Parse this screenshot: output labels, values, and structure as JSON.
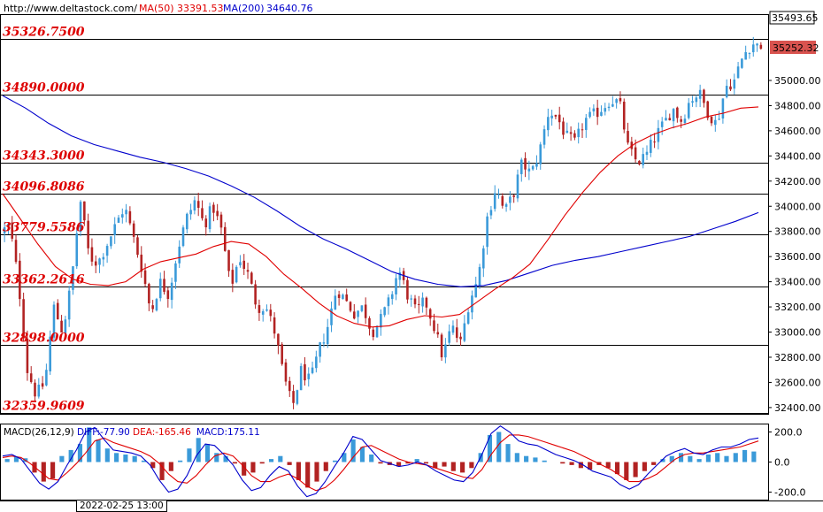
{
  "header": {
    "url": "http://www.deltastock.com/",
    "ma50_label": "MA(50)",
    "ma50_value": "33391.53",
    "ma200_label": "MA(200)",
    "ma200_value": "34640.76"
  },
  "price_axis": {
    "max_label": "35493.65",
    "last_price": "35252.32",
    "ticks": [
      "35000.00",
      "34800.00",
      "34600.00",
      "34400.00",
      "34200.00",
      "34000.00",
      "33800.00",
      "33600.00",
      "33400.00",
      "33200.00",
      "33000.00",
      "32800.00",
      "32600.00",
      "32400.00"
    ]
  },
  "levels": [
    "35326.7500",
    "34890.0000",
    "34343.3000",
    "34096.8086",
    "33779.5586",
    "33362.2616",
    "32898.0000",
    "32359.9609"
  ],
  "macd": {
    "label": "MACD(26,12,9)",
    "diff": "DIFF:-77.90",
    "dea": "DEA:-165.46",
    "macd": "MACD:175.11",
    "ticks": [
      "200.0",
      "0.0",
      "-200.0"
    ]
  },
  "time_label": "2022-02-25 13:00",
  "colors": {
    "up": "#3a9ad9",
    "down": "#b22222",
    "ma50": "#e00000",
    "ma200": "#0000cc",
    "level_text": "#dd0000",
    "last_price_bg": "#d9534f"
  },
  "chart_data": {
    "type": "candlestick",
    "ylim": [
      32350,
      35520
    ],
    "levels": [
      35326.75,
      34890.0,
      34343.3,
      34096.8086,
      33779.5586,
      33362.2616,
      32898.0,
      32359.9609
    ],
    "last_price": 35252.32,
    "max_price": 35493.65,
    "price_path": [
      33790,
      33850,
      33400,
      32700,
      32500,
      32600,
      33200,
      33000,
      33400,
      34050,
      33600,
      33550,
      33700,
      33850,
      34000,
      33750,
      33500,
      33150,
      33400,
      33300,
      33650,
      33900,
      34050,
      33850,
      34000,
      33800,
      33350,
      33600,
      33450,
      33200,
      33200,
      33000,
      32650,
      32400,
      32700,
      32600,
      32850,
      33050,
      33350,
      33250,
      33150,
      33200,
      33000,
      33100,
      33250,
      33500,
      33300,
      33150,
      33250,
      33050,
      32800,
      33050,
      32900,
      33250,
      33420,
      33900,
      34150,
      33950,
      34100,
      34350,
      34250,
      34450,
      34760,
      34700,
      34550,
      34500,
      34680,
      34720,
      34780,
      34850,
      34820,
      34450,
      34350,
      34400,
      34550,
      34650,
      34780,
      34680,
      34850,
      34900,
      34750,
      34650,
      34950,
      35000,
      35200,
      35300,
      35252
    ],
    "ma50": [
      34100,
      33900,
      33700,
      33520,
      33420,
      33380,
      33370,
      33400,
      33500,
      33560,
      33590,
      33620,
      33680,
      33720,
      33700,
      33600,
      33460,
      33350,
      33230,
      33130,
      33070,
      33040,
      33050,
      33100,
      33130,
      33120,
      33140,
      33240,
      33340,
      33430,
      33540,
      33730,
      33930,
      34110,
      34270,
      34400,
      34500,
      34570,
      34620,
      34660,
      34710,
      34740,
      34780,
      34790
    ],
    "ma200": [
      34880,
      34780,
      34660,
      34560,
      34490,
      34440,
      34390,
      34350,
      34300,
      34240,
      34160,
      34070,
      33960,
      33840,
      33740,
      33660,
      33570,
      33480,
      33420,
      33380,
      33360,
      33370,
      33410,
      33470,
      33530,
      33570,
      33600,
      33640,
      33680,
      33720,
      33760,
      33820,
      33880,
      33950
    ],
    "macd_ylim": [
      -250,
      250
    ],
    "macd_hist": [
      20,
      35,
      25,
      -70,
      -130,
      -110,
      40,
      80,
      120,
      230,
      150,
      90,
      60,
      50,
      40,
      10,
      -40,
      -120,
      -60,
      10,
      90,
      160,
      120,
      60,
      40,
      -10,
      -90,
      -70,
      -10,
      20,
      40,
      -20,
      -120,
      -170,
      -130,
      -60,
      10,
      60,
      150,
      100,
      50,
      -10,
      -20,
      -30,
      -10,
      20,
      -10,
      -40,
      -30,
      -60,
      -70,
      -40,
      60,
      180,
      200,
      120,
      60,
      40,
      30,
      10,
      0,
      -10,
      -20,
      -40,
      -50,
      -20,
      -40,
      -80,
      -120,
      -100,
      -60,
      -20,
      20,
      40,
      60,
      40,
      20,
      50,
      60,
      40,
      60,
      80,
      70
    ],
    "macd_diff": [
      40,
      50,
      20,
      -60,
      -140,
      -180,
      -130,
      -20,
      80,
      200,
      230,
      150,
      80,
      70,
      60,
      40,
      -20,
      -120,
      -200,
      -180,
      -90,
      40,
      120,
      110,
      50,
      -20,
      -120,
      -190,
      -170,
      -90,
      -30,
      -60,
      -160,
      -230,
      -210,
      -130,
      -30,
      60,
      170,
      150,
      80,
      10,
      -10,
      -30,
      -20,
      0,
      -20,
      -60,
      -90,
      -120,
      -130,
      -70,
      50,
      190,
      240,
      200,
      140,
      120,
      110,
      80,
      50,
      30,
      10,
      -20,
      -60,
      -80,
      -100,
      -150,
      -180,
      -150,
      -80,
      -20,
      40,
      70,
      90,
      60,
      50,
      80,
      100,
      100,
      120,
      150,
      160
    ],
    "macd_dea": [
      30,
      40,
      30,
      -10,
      -60,
      -110,
      -120,
      -70,
      -10,
      60,
      140,
      160,
      130,
      110,
      90,
      70,
      40,
      -10,
      -80,
      -130,
      -140,
      -90,
      -20,
      40,
      60,
      40,
      -20,
      -90,
      -130,
      -130,
      -100,
      -80,
      -110,
      -160,
      -190,
      -170,
      -120,
      -50,
      30,
      100,
      110,
      80,
      50,
      20,
      0,
      -10,
      -20,
      -40,
      -60,
      -80,
      -100,
      -110,
      -50,
      50,
      130,
      180,
      180,
      170,
      150,
      130,
      110,
      90,
      70,
      40,
      10,
      -20,
      -50,
      -90,
      -130,
      -130,
      -110,
      -80,
      -30,
      20,
      50,
      60,
      60,
      70,
      80,
      90,
      100,
      120,
      140
    ]
  }
}
